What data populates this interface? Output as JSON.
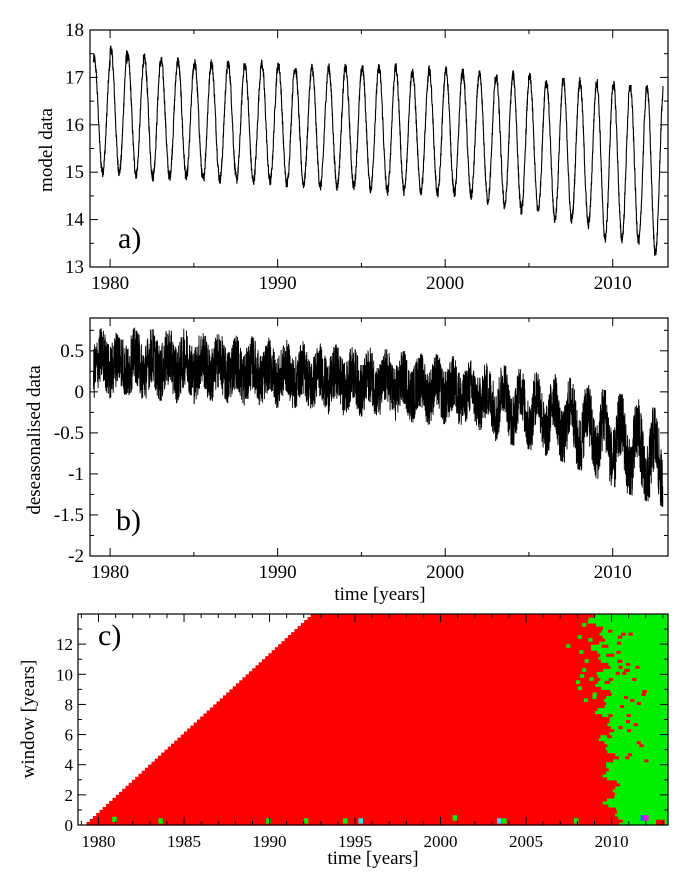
{
  "figure": {
    "colors": {
      "frame": "#000000",
      "red": "#ff0000",
      "green": "#00ee00",
      "blue": "#2060ff",
      "cyan": "#33ddee",
      "magenta": "#ff00ff",
      "background": "#ffffff"
    }
  },
  "chart_data": [
    {
      "type": "line",
      "panel_label": "a)",
      "title": "",
      "xlabel": "",
      "ylabel": "model data",
      "xlim": [
        1978.8,
        2013.3
      ],
      "ylim": [
        13,
        18
      ],
      "x_ticks": [
        1980,
        1990,
        2000,
        2010
      ],
      "x_tick_labels": [
        "1980",
        "1990",
        "2000",
        "2010"
      ],
      "y_ticks": [
        13,
        14,
        15,
        16,
        17,
        18
      ],
      "y_tick_labels": [
        "13",
        "14",
        "15",
        "16",
        "17",
        "18"
      ],
      "series": [
        {
          "name": "model data",
          "description": "annual cycle with ~1 year period",
          "x_start": 1979.0,
          "x_end": 2013.0,
          "annual_max": [
            17.4,
            17.6,
            17.45,
            17.4,
            17.35,
            17.35,
            17.3,
            17.3,
            17.3,
            17.25,
            17.3,
            17.25,
            17.2,
            17.2,
            17.2,
            17.2,
            17.2,
            17.2,
            17.2,
            17.1,
            17.15,
            17.15,
            17.1,
            17.05,
            17.0,
            17.05,
            17.0,
            16.9,
            16.95,
            16.9,
            16.9,
            16.85,
            16.8,
            16.8
          ],
          "annual_min": [
            15.0,
            15.0,
            14.95,
            14.9,
            14.9,
            14.9,
            14.85,
            14.85,
            14.85,
            14.8,
            14.8,
            14.75,
            14.75,
            14.7,
            14.7,
            14.7,
            14.65,
            14.6,
            14.6,
            14.6,
            14.55,
            14.55,
            14.5,
            14.4,
            14.3,
            14.2,
            14.2,
            14.0,
            14.0,
            13.9,
            13.6,
            13.6,
            13.55,
            13.3
          ]
        }
      ]
    },
    {
      "type": "line",
      "panel_label": "b)",
      "title": "",
      "xlabel": "time [years]",
      "ylabel": "deseasonalised data",
      "xlim": [
        1978.8,
        2013.3
      ],
      "ylim": [
        -2,
        0.9
      ],
      "x_ticks": [
        1980,
        1990,
        2000,
        2010
      ],
      "x_tick_labels": [
        "1980",
        "1990",
        "2000",
        "2010"
      ],
      "y_ticks": [
        -2,
        -1.5,
        -1,
        -0.5,
        0,
        0.5
      ],
      "y_tick_labels": [
        "-2",
        "-1.5",
        "-1",
        "-0.5",
        "0",
        "0.5"
      ],
      "series": [
        {
          "name": "deseasonalised data",
          "trend_x": [
            1979,
            1985,
            1990,
            1995,
            2000,
            2003,
            2005,
            2007,
            2009,
            2011,
            2013
          ],
          "trend_y": [
            0.35,
            0.32,
            0.22,
            0.12,
            0.02,
            -0.1,
            -0.22,
            -0.35,
            -0.5,
            -0.7,
            -0.9
          ],
          "band_x": [
            1979,
            1985,
            1990,
            1995,
            2000,
            2003,
            2005,
            2007,
            2009,
            2011,
            2013
          ],
          "band_upper": [
            0.85,
            0.85,
            0.65,
            0.55,
            0.45,
            0.35,
            0.25,
            0.2,
            0.05,
            -0.05,
            -0.2
          ],
          "band_lower": [
            -0.1,
            -0.15,
            -0.25,
            -0.4,
            -0.5,
            -0.6,
            -0.7,
            -0.85,
            -1.05,
            -1.25,
            -1.4
          ]
        }
      ]
    },
    {
      "type": "heatmap",
      "panel_label": "c)",
      "title": "",
      "xlabel": "time [years]",
      "ylabel": "window [years]",
      "xlim": [
        1978.8,
        2013.3
      ],
      "ylim": [
        0,
        14
      ],
      "x_ticks": [
        1980,
        1985,
        1990,
        1995,
        2000,
        2005,
        2010
      ],
      "x_tick_labels": [
        "1980",
        "1985",
        "1990",
        "1995",
        "2000",
        "2005",
        "2010"
      ],
      "y_ticks": [
        0,
        2,
        4,
        6,
        8,
        10,
        12
      ],
      "y_tick_labels": [
        "0",
        "2",
        "4",
        "6",
        "8",
        "10",
        "12"
      ],
      "regions": [
        {
          "category": "red",
          "description": "triangle from (1979.2, 0) up to (1992.5, 14), filled to the right until green boundary"
        },
        {
          "category": "green",
          "boundary_x": [
            2009.1,
            2010.2
          ],
          "boundary_note": "green region roughly x > 2009.2 at top, x > 2010.1 at bottom"
        }
      ],
      "scattered_cells": [
        {
          "x": 1980.8,
          "y": 0.2,
          "category": "green"
        },
        {
          "x": 1983.5,
          "y": 0.1,
          "category": "green"
        },
        {
          "x": 1989.8,
          "y": 0.1,
          "category": "green"
        },
        {
          "x": 1992.0,
          "y": 0.1,
          "category": "green"
        },
        {
          "x": 1994.3,
          "y": 0.1,
          "category": "green"
        },
        {
          "x": 1995.2,
          "y": 0.1,
          "category": "cyan"
        },
        {
          "x": 2000.7,
          "y": 0.3,
          "category": "green"
        },
        {
          "x": 2003.3,
          "y": 0.1,
          "category": "cyan"
        },
        {
          "x": 2003.6,
          "y": 0.1,
          "category": "green"
        },
        {
          "x": 2007.8,
          "y": 0.1,
          "category": "green"
        },
        {
          "x": 2011.7,
          "y": 0.3,
          "category": "blue"
        },
        {
          "x": 2011.9,
          "y": 0.3,
          "category": "magenta"
        }
      ]
    }
  ]
}
